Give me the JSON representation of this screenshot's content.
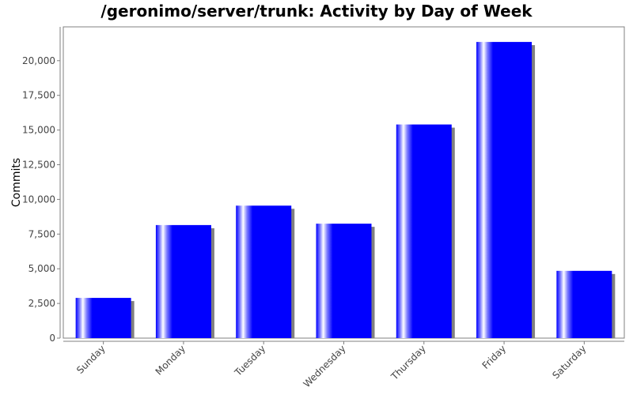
{
  "chart_data": {
    "type": "bar",
    "title": "/geronimo/server/trunk: Activity by Day of Week",
    "xlabel": "",
    "ylabel": "Commits",
    "categories": [
      "Sunday",
      "Monday",
      "Tuesday",
      "Wednesday",
      "Thursday",
      "Friday",
      "Saturday"
    ],
    "values": [
      2900,
      8150,
      9550,
      8250,
      15400,
      21350,
      4850
    ],
    "ylim": [
      0,
      22500
    ],
    "yticks": [
      0,
      2500,
      5000,
      7500,
      10000,
      12500,
      15000,
      17500,
      20000
    ],
    "ytick_labels": [
      "0",
      "2,500",
      "5,000",
      "7,500",
      "10,000",
      "12,500",
      "15,000",
      "17,500",
      "20,000"
    ],
    "grid": false,
    "colors": {
      "bar": "#0000ff",
      "bar_highlight": "#ffffff",
      "shadow": "#808080",
      "axis": "#808080"
    }
  }
}
